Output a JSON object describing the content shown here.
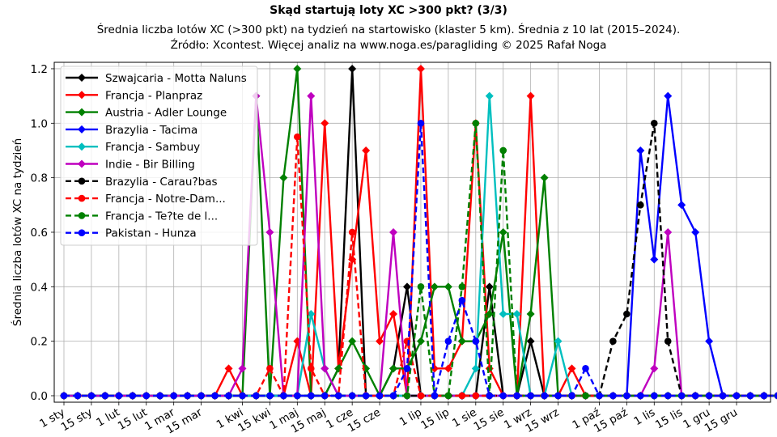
{
  "chart_data": {
    "type": "line",
    "title": "Skąd startują loty XC >300 pkt? (3/3)",
    "subtitle_lines": [
      "Średnia liczba lotów XC (>300 pkt) na tydzień na startowisko (klaster 5 km). Średnia z 10 lat (2015–2024).",
      "Źródło: Xcontest. Więcej analiz na www.noga.es/paragliding © 2025 Rafał Noga"
    ],
    "xlabel": "",
    "ylabel": "Średnia liczba lotów XC na tydzień",
    "x_week_range": [
      1,
      53
    ],
    "ylim": [
      -0.02,
      1.22
    ],
    "yticks": [
      0.0,
      0.2,
      0.4,
      0.6,
      0.8,
      1.0,
      1.2
    ],
    "ytick_labels": [
      "0.0",
      "0.2",
      "0.4",
      "0.6",
      "0.8",
      "1.0",
      "1.2"
    ],
    "xticks": [
      {
        "week": 1,
        "label": "1 sty"
      },
      {
        "week": 3,
        "label": "15 sty"
      },
      {
        "week": 5,
        "label": "1 lut"
      },
      {
        "week": 7,
        "label": "15 lut"
      },
      {
        "week": 9,
        "label": "1 mar"
      },
      {
        "week": 11,
        "label": "15 mar"
      },
      {
        "week": 14,
        "label": "1 kwi"
      },
      {
        "week": 16,
        "label": "15 kwi"
      },
      {
        "week": 18,
        "label": "1 maj"
      },
      {
        "week": 20,
        "label": "15 maj"
      },
      {
        "week": 22,
        "label": "1 cze"
      },
      {
        "week": 24,
        "label": "15 cze"
      },
      {
        "week": 27,
        "label": "1 lip"
      },
      {
        "week": 29,
        "label": "15 lip"
      },
      {
        "week": 31,
        "label": "1 sie"
      },
      {
        "week": 33,
        "label": "15 sie"
      },
      {
        "week": 35,
        "label": "1 wrz"
      },
      {
        "week": 37,
        "label": "15 wrz"
      },
      {
        "week": 40,
        "label": "1 paź"
      },
      {
        "week": 42,
        "label": "15 paź"
      },
      {
        "week": 44,
        "label": "1 lis"
      },
      {
        "week": 46,
        "label": "15 lis"
      },
      {
        "week": 48,
        "label": "1 gru"
      },
      {
        "week": 50,
        "label": "15 gru"
      }
    ],
    "grid": true,
    "legend_position": "top-left",
    "series": [
      {
        "name": "Szwajcaria - Motta Naluns",
        "color": "#000000",
        "style": "solid",
        "marker": "diamond",
        "values": [
          0,
          0,
          0,
          0,
          0,
          0,
          0,
          0,
          0,
          0,
          0,
          0,
          0,
          0,
          0,
          0,
          0,
          0,
          0,
          0,
          0.1,
          1.2,
          0,
          0,
          0.1,
          0.4,
          0,
          0,
          0,
          0,
          0,
          0.4,
          0,
          0,
          0.2,
          0,
          0,
          0,
          0,
          0,
          0,
          0,
          0,
          0,
          0,
          0,
          0,
          0,
          0,
          0,
          0,
          0,
          0
        ]
      },
      {
        "name": "Francja - Planpraz",
        "color": "#ff0000",
        "style": "solid",
        "marker": "diamond",
        "values": [
          0,
          0,
          0,
          0,
          0,
          0,
          0,
          0,
          0,
          0,
          0,
          0,
          0.1,
          0,
          0,
          0,
          0,
          0.2,
          0,
          1.0,
          0.1,
          0.5,
          0.9,
          0.2,
          0.3,
          0,
          1.2,
          0.1,
          0.1,
          0.2,
          1.0,
          0.1,
          0,
          0,
          1.1,
          0,
          0,
          0.1,
          0,
          0,
          0,
          0,
          0,
          0,
          0,
          0,
          0,
          0,
          0,
          0,
          0,
          0,
          0
        ]
      },
      {
        "name": "Austria - Adler Lounge",
        "color": "#008000",
        "style": "solid",
        "marker": "diamond",
        "values": [
          0,
          0,
          0,
          0,
          0,
          0,
          0,
          0,
          0,
          0,
          0,
          0,
          0,
          0,
          1.1,
          0,
          0.8,
          1.2,
          0,
          0,
          0.1,
          0.2,
          0.1,
          0,
          0.1,
          0.1,
          0.2,
          0.4,
          0.4,
          0.2,
          0.2,
          0.3,
          0.6,
          0,
          0.3,
          0.8,
          0,
          0,
          0,
          0,
          0,
          0,
          0,
          0,
          0,
          0,
          0,
          0,
          0,
          0,
          0,
          0,
          0
        ]
      },
      {
        "name": "Brazylia - Tacima",
        "color": "#0000ff",
        "style": "solid",
        "marker": "diamond",
        "values": [
          0,
          0,
          0,
          0,
          0,
          0,
          0,
          0,
          0,
          0,
          0,
          0,
          0,
          0,
          0,
          0,
          0,
          0,
          0,
          0,
          0,
          0,
          0,
          0,
          0,
          0,
          0,
          0,
          0,
          0,
          0,
          0,
          0,
          0,
          0,
          0,
          0,
          0,
          0,
          0,
          0,
          0,
          0.9,
          0.5,
          1.1,
          0.7,
          0.6,
          0.2,
          0,
          0,
          0,
          0,
          0
        ]
      },
      {
        "name": "Francja - Sambuy",
        "color": "#00bfbf",
        "style": "solid",
        "marker": "diamond",
        "values": [
          0,
          0,
          0,
          0,
          0,
          0,
          0,
          0,
          0,
          0,
          0,
          0,
          0,
          0,
          0,
          0,
          0,
          0,
          0.3,
          0.1,
          0,
          0,
          0,
          0,
          0,
          0,
          0,
          0,
          0,
          0,
          0.1,
          1.1,
          0.3,
          0.3,
          0,
          0,
          0.2,
          0,
          0,
          0,
          0,
          0,
          0,
          0,
          0,
          0,
          0,
          0,
          0,
          0,
          0,
          0,
          0
        ]
      },
      {
        "name": "Indie - Bir Billing",
        "color": "#bf00bf",
        "style": "solid",
        "marker": "diamond",
        "values": [
          0,
          0,
          0,
          0,
          0,
          0,
          0,
          0,
          0,
          0,
          0,
          0,
          0,
          0.1,
          1.1,
          0.6,
          0,
          0,
          1.1,
          0.1,
          0,
          0,
          0,
          0,
          0.6,
          0,
          0,
          0,
          0,
          0,
          0,
          0,
          0,
          0,
          0,
          0,
          0,
          0,
          0,
          0,
          0,
          0,
          0,
          0.1,
          0.6,
          0,
          0,
          0,
          0,
          0,
          0,
          0,
          0
        ]
      },
      {
        "name": "Brazylia - Carau?bas",
        "color": "#000000",
        "style": "dashed",
        "marker": "circle",
        "values": [
          0,
          0,
          0,
          0,
          0,
          0,
          0,
          0,
          0,
          0,
          0,
          0,
          0,
          0,
          0,
          0,
          0,
          0,
          0,
          0,
          0,
          0,
          0,
          0,
          0,
          0,
          0,
          0,
          0,
          0,
          0,
          0,
          0,
          0,
          0,
          0,
          0,
          0,
          0,
          0,
          0.2,
          0.3,
          0.7,
          1.0,
          0.2,
          0,
          0,
          0,
          0,
          0,
          0,
          0,
          0
        ]
      },
      {
        "name": "Francja - Notre-Dam...",
        "color": "#ff0000",
        "style": "dashed",
        "marker": "circle",
        "values": [
          0,
          0,
          0,
          0,
          0,
          0,
          0,
          0,
          0,
          0,
          0,
          0,
          0,
          0,
          0,
          0.1,
          0,
          0.95,
          0.1,
          0,
          0,
          0.6,
          0,
          0,
          0,
          0.2,
          0,
          0,
          0,
          0,
          0,
          0,
          0,
          0,
          0,
          0,
          0,
          0,
          0,
          0,
          0,
          0,
          0,
          0,
          0,
          0,
          0,
          0,
          0,
          0,
          0,
          0,
          0
        ]
      },
      {
        "name": "Francja - Te?te de l...",
        "color": "#008000",
        "style": "dashed",
        "marker": "circle",
        "values": [
          0,
          0,
          0,
          0,
          0,
          0,
          0,
          0,
          0,
          0,
          0,
          0,
          0,
          0,
          0,
          0,
          0,
          0,
          0,
          0,
          0,
          0,
          0,
          0,
          0,
          0,
          0.4,
          0,
          0,
          0.4,
          1.0,
          0,
          0.9,
          0,
          0,
          0,
          0,
          0,
          0,
          0,
          0,
          0,
          0,
          0,
          0,
          0,
          0,
          0,
          0,
          0,
          0,
          0,
          0
        ]
      },
      {
        "name": "Pakistan - Hunza",
        "color": "#0000ff",
        "style": "dashed",
        "marker": "circle",
        "values": [
          0,
          0,
          0,
          0,
          0,
          0,
          0,
          0,
          0,
          0,
          0,
          0,
          0,
          0,
          0,
          0,
          0,
          0,
          0,
          0,
          0,
          0,
          0,
          0,
          0,
          0.1,
          1.0,
          0,
          0.2,
          0.35,
          0.2,
          0,
          0,
          0,
          0,
          0,
          0,
          0,
          0.1,
          0,
          0,
          0,
          0,
          0,
          0,
          0,
          0,
          0,
          0,
          0,
          0,
          0,
          0
        ]
      }
    ]
  }
}
